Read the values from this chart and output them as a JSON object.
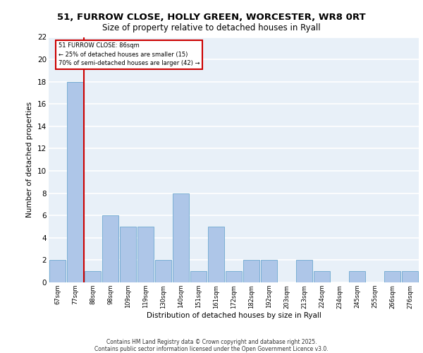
{
  "title_line1": "51, FURROW CLOSE, HOLLY GREEN, WORCESTER, WR8 0RT",
  "title_line2": "Size of property relative to detached houses in Ryall",
  "xlabel": "Distribution of detached houses by size in Ryall",
  "ylabel": "Number of detached properties",
  "categories": [
    "67sqm",
    "77sqm",
    "88sqm",
    "98sqm",
    "109sqm",
    "119sqm",
    "130sqm",
    "140sqm",
    "151sqm",
    "161sqm",
    "172sqm",
    "182sqm",
    "192sqm",
    "203sqm",
    "213sqm",
    "224sqm",
    "234sqm",
    "245sqm",
    "255sqm",
    "266sqm",
    "276sqm"
  ],
  "values": [
    2,
    18,
    1,
    6,
    5,
    5,
    2,
    8,
    1,
    5,
    1,
    2,
    2,
    0,
    2,
    1,
    0,
    1,
    0,
    1,
    1
  ],
  "bar_color": "#aec6e8",
  "bar_edge_color": "#7aafd4",
  "annotation_line1": "51 FURROW CLOSE: 86sqm",
  "annotation_line2": "← 25% of detached houses are smaller (15)",
  "annotation_line3": "70% of semi-detached houses are larger (42) →",
  "annotation_box_color": "#ffffff",
  "annotation_box_edge_color": "#cc0000",
  "vline_color": "#cc0000",
  "vline_x_index": 1.5,
  "ylim": [
    0,
    22
  ],
  "yticks": [
    0,
    2,
    4,
    6,
    8,
    10,
    12,
    14,
    16,
    18,
    20,
    22
  ],
  "background_color": "#e8f0f8",
  "footer_line1": "Contains HM Land Registry data © Crown copyright and database right 2025.",
  "footer_line2": "Contains public sector information licensed under the Open Government Licence v3.0."
}
